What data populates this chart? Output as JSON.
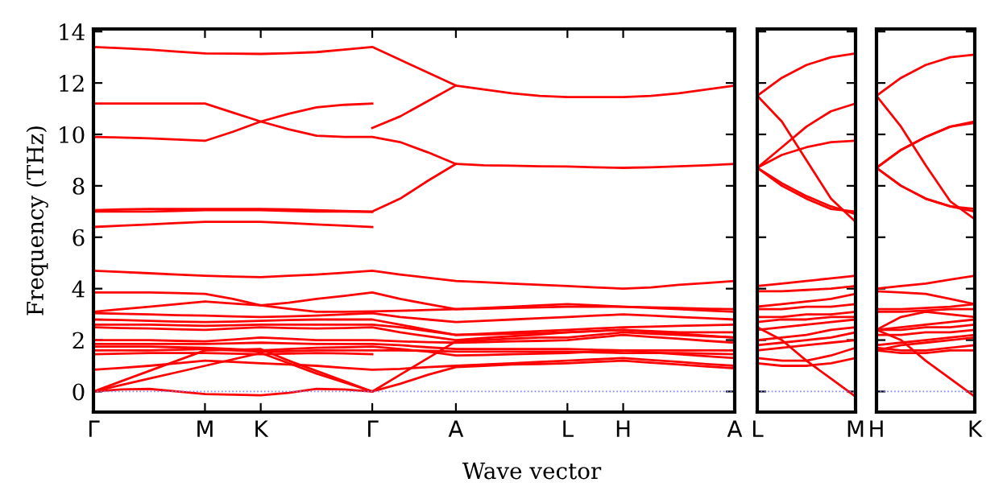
{
  "chart_data": [
    {
      "type": "line",
      "xlabel": "Wave vector",
      "ylabel": "Frequency (THz)",
      "ylim": [
        -0.8,
        14.1
      ],
      "categories": [
        "Γ",
        null,
        null,
        null,
        "M",
        null,
        "K",
        null,
        null,
        null,
        "Γ",
        null,
        null,
        "A",
        null,
        null,
        null,
        "L",
        null,
        "H",
        null,
        null,
        null,
        "A"
      ],
      "yticks": [
        0,
        2,
        4,
        6,
        8,
        10,
        12,
        14
      ],
      "grid": false,
      "legend": false,
      "line_style": "solid",
      "ref_lines": [
        {
          "axis": "y",
          "value": 0,
          "label": null,
          "color": "#8080ff",
          "line_style": "dotted"
        }
      ],
      "series": [
        {
          "color": "#ff0000",
          "values": [
            13.4,
            13.35,
            13.3,
            13.22,
            13.15,
            13.14,
            13.13,
            13.16,
            13.2,
            13.3,
            13.4,
            12.9,
            12.4,
            11.9,
            11.75,
            11.6,
            11.5,
            11.45,
            11.45,
            11.45,
            11.5,
            11.6,
            11.75,
            11.9
          ]
        },
        {
          "color": "#ff0000",
          "values": [
            11.2,
            11.2,
            11.2,
            11.2,
            11.2,
            10.85,
            10.5,
            10.2,
            9.95,
            9.9,
            9.9,
            9.7,
            9.3,
            8.85,
            8.8,
            8.78,
            8.76,
            8.75,
            8.72,
            8.7,
            8.72,
            8.76,
            8.8,
            8.85
          ]
        },
        {
          "color": "#ff0000",
          "values": [
            9.9,
            9.88,
            9.85,
            9.8,
            9.75,
            10.1,
            10.5,
            10.8,
            11.05,
            11.15,
            11.2,
            null,
            null,
            null,
            null,
            null,
            null,
            null,
            null,
            null,
            null,
            null,
            null,
            null
          ]
        },
        {
          "color": "#ff0000",
          "values": [
            null,
            null,
            null,
            null,
            null,
            null,
            null,
            null,
            null,
            null,
            10.25,
            10.7,
            11.3,
            11.9,
            null,
            null,
            null,
            null,
            null,
            null,
            null,
            null,
            null,
            null
          ]
        },
        {
          "color": "#ff0000",
          "values": [
            7.05,
            7.08,
            7.1,
            7.1,
            7.1,
            7.1,
            7.1,
            7.08,
            7.05,
            7.02,
            7.0,
            7.5,
            8.2,
            8.85,
            null,
            null,
            null,
            null,
            null,
            null,
            null,
            null,
            null,
            null
          ]
        },
        {
          "color": "#ff0000",
          "values": [
            7.0,
            7.0,
            7.0,
            7.02,
            7.05,
            7.05,
            7.05,
            7.02,
            7.0,
            7.0,
            6.98,
            null,
            null,
            null,
            null,
            null,
            null,
            null,
            null,
            null,
            null,
            null,
            null,
            null
          ]
        },
        {
          "color": "#ff0000",
          "values": [
            6.4,
            6.45,
            6.5,
            6.55,
            6.6,
            6.6,
            6.6,
            6.55,
            6.5,
            6.45,
            6.4,
            null,
            null,
            null,
            null,
            null,
            null,
            null,
            null,
            null,
            null,
            null,
            null,
            null
          ]
        },
        {
          "color": "#ff0000",
          "values": [
            4.7,
            4.65,
            4.6,
            4.55,
            4.5,
            4.47,
            4.45,
            4.5,
            4.55,
            4.62,
            4.7,
            4.55,
            4.42,
            4.3,
            4.25,
            4.2,
            4.15,
            4.1,
            4.05,
            4.0,
            4.05,
            4.15,
            4.22,
            4.3
          ]
        },
        {
          "color": "#ff0000",
          "values": [
            3.85,
            3.85,
            3.85,
            3.83,
            3.8,
            3.6,
            3.35,
            3.45,
            3.6,
            3.72,
            3.85,
            3.6,
            3.4,
            3.2,
            3.25,
            3.3,
            3.35,
            3.4,
            3.35,
            3.3,
            3.27,
            3.25,
            3.22,
            3.2
          ]
        },
        {
          "color": "#ff0000",
          "values": [
            3.1,
            3.2,
            3.3,
            3.4,
            3.5,
            3.42,
            3.35,
            3.22,
            3.1,
            3.1,
            3.12,
            3.14,
            3.17,
            3.2,
            3.22,
            3.25,
            3.27,
            3.3,
            3.3,
            3.3,
            3.25,
            3.2,
            3.15,
            3.1
          ]
        },
        {
          "color": "#ff0000",
          "values": [
            3.05,
            3.02,
            3.0,
            2.97,
            2.95,
            2.92,
            2.9,
            2.92,
            2.95,
            3.0,
            3.05,
            2.9,
            2.8,
            2.7,
            2.75,
            2.8,
            2.85,
            2.9,
            2.95,
            3.0,
            2.95,
            2.9,
            2.85,
            2.8
          ]
        },
        {
          "color": "#ff0000",
          "values": [
            2.8,
            2.78,
            2.75,
            2.72,
            2.7,
            2.72,
            2.75,
            2.78,
            2.8,
            2.8,
            2.8,
            2.6,
            2.4,
            2.2,
            2.22,
            2.25,
            2.27,
            2.3,
            2.35,
            2.4,
            2.35,
            2.3,
            2.3,
            2.3
          ]
        },
        {
          "color": "#ff0000",
          "values": [
            2.6,
            2.6,
            2.6,
            2.58,
            2.55,
            2.58,
            2.6,
            2.6,
            2.6,
            2.6,
            2.6,
            2.5,
            2.35,
            2.2,
            2.25,
            2.3,
            2.35,
            2.4,
            2.45,
            2.5,
            2.52,
            2.55,
            2.58,
            2.6
          ]
        },
        {
          "color": "#ff0000",
          "values": [
            2.5,
            2.47,
            2.45,
            2.42,
            2.4,
            2.45,
            2.5,
            2.47,
            2.45,
            2.47,
            2.5,
            2.3,
            2.15,
            2.0,
            2.08,
            2.15,
            2.22,
            2.3,
            2.35,
            2.4,
            2.32,
            2.25,
            2.17,
            2.1
          ]
        },
        {
          "color": "#ff0000",
          "values": [
            2.0,
            2.0,
            2.0,
            1.97,
            1.95,
            2.02,
            2.1,
            2.05,
            2.0,
            2.0,
            2.0,
            1.95,
            1.92,
            1.9,
            1.92,
            1.95,
            1.97,
            2.0,
            2.1,
            2.2,
            2.12,
            2.05,
            1.97,
            1.9
          ]
        },
        {
          "color": "#ff0000",
          "values": [
            1.85,
            1.85,
            1.85,
            1.85,
            1.85,
            1.87,
            1.9,
            1.87,
            1.85,
            1.85,
            1.85,
            1.8,
            1.72,
            1.65,
            1.65,
            1.65,
            1.65,
            1.65,
            1.62,
            1.6,
            1.6,
            1.6,
            1.6,
            1.6
          ]
        },
        {
          "color": "#ff0000",
          "values": [
            1.75,
            1.75,
            1.75,
            1.72,
            1.7,
            1.65,
            1.6,
            1.65,
            1.7,
            1.72,
            1.75,
            1.65,
            1.55,
            1.4,
            1.42,
            1.45,
            1.47,
            1.5,
            1.55,
            1.6,
            1.52,
            1.45,
            1.37,
            1.3
          ]
        },
        {
          "color": "#ff0000",
          "values": [
            1.6,
            1.6,
            1.6,
            1.62,
            1.65,
            1.6,
            1.55,
            1.57,
            1.6,
            1.6,
            1.6,
            1.6,
            1.58,
            1.55,
            1.55,
            1.55,
            1.55,
            1.55,
            1.52,
            1.5,
            1.5,
            1.5,
            1.47,
            1.45
          ]
        },
        {
          "color": "#ff0000",
          "values": [
            1.45,
            1.47,
            1.5,
            1.5,
            1.5,
            1.47,
            1.45,
            1.47,
            1.5,
            1.48,
            1.45,
            null,
            null,
            null,
            null,
            null,
            null,
            null,
            null,
            null,
            null,
            null,
            null,
            null
          ]
        },
        {
          "color": "#ff0000",
          "values": [
            0.85,
            0.92,
            1.0,
            1.1,
            1.2,
            1.15,
            1.1,
            1.05,
            1.0,
            0.92,
            0.85,
            0.88,
            0.95,
            1.0,
            1.05,
            1.1,
            1.15,
            1.2,
            1.25,
            1.3,
            1.22,
            1.15,
            1.07,
            1.0
          ]
        },
        {
          "color": "#ff0000",
          "values": [
            0,
            0.4,
            0.8,
            1.2,
            1.6,
            1.62,
            1.65,
            1.2,
            0.8,
            0.4,
            0,
            0.65,
            1.3,
            1.95,
            2.0,
            2.05,
            2.1,
            2.1,
            2.2,
            2.3,
            2.25,
            2.2,
            2.15,
            2.1
          ]
        },
        {
          "color": "#ff0000",
          "values": [
            0,
            0.25,
            0.5,
            0.75,
            1.0,
            1.25,
            1.5,
            1.1,
            0.7,
            0.35,
            0,
            0.3,
            0.65,
            0.95,
            1.0,
            1.05,
            1.07,
            1.1,
            1.15,
            1.2,
            1.12,
            1.05,
            0.97,
            0.9
          ]
        },
        {
          "color": "#ff0000",
          "values": [
            0,
            0.08,
            0.1,
            0,
            -0.1,
            -0.12,
            -0.15,
            -0.05,
            0.1,
            0.08,
            0,
            null,
            null,
            null,
            null,
            null,
            null,
            null,
            null,
            null,
            null,
            null,
            null,
            null
          ]
        }
      ]
    },
    {
      "type": "line",
      "ylim": [
        -0.8,
        14.1
      ],
      "tick_labels": "x",
      "categories": [
        "L",
        null,
        null,
        null,
        "M"
      ],
      "yticks": [
        {
          "value": 0,
          "label": null
        },
        {
          "value": 2,
          "label": null
        },
        {
          "value": 4,
          "label": null
        },
        {
          "value": 6,
          "label": null
        },
        {
          "value": 8,
          "label": null
        },
        {
          "value": 10,
          "label": null
        },
        {
          "value": 12,
          "label": null
        },
        {
          "value": 14,
          "label": null
        }
      ],
      "grid": false,
      "legend": false,
      "line_style": "solid",
      "ref_lines": [
        {
          "axis": "y",
          "value": 0,
          "label": null,
          "color": "#8080ff",
          "line_style": "dotted"
        }
      ],
      "series": [
        {
          "color": "#ff0000",
          "values": [
            11.5,
            12.2,
            12.7,
            13.0,
            13.15
          ]
        },
        {
          "color": "#ff0000",
          "values": [
            11.5,
            10.5,
            9.0,
            7.5,
            6.6
          ]
        },
        {
          "color": "#ff0000",
          "values": [
            8.7,
            9.5,
            10.3,
            10.9,
            11.2
          ]
        },
        {
          "color": "#ff0000",
          "values": [
            8.7,
            9.2,
            9.5,
            9.7,
            9.75
          ]
        },
        {
          "color": "#ff0000",
          "values": [
            8.7,
            8.0,
            7.5,
            7.1,
            7.0
          ]
        },
        {
          "color": "#ff0000",
          "values": [
            8.7,
            8.1,
            7.6,
            7.2,
            6.9
          ]
        },
        {
          "color": "#ff0000",
          "values": [
            4.1,
            4.2,
            4.3,
            4.4,
            4.5
          ]
        },
        {
          "color": "#ff0000",
          "values": [
            3.9,
            3.9,
            3.95,
            4.0,
            4.1
          ]
        },
        {
          "color": "#ff0000",
          "values": [
            3.3,
            3.4,
            3.5,
            3.6,
            3.8
          ]
        },
        {
          "color": "#ff0000",
          "values": [
            3.2,
            3.2,
            3.3,
            3.3,
            3.4
          ]
        },
        {
          "color": "#ff0000",
          "values": [
            2.9,
            2.9,
            3.0,
            3.0,
            3.1
          ]
        },
        {
          "color": "#ff0000",
          "values": [
            2.7,
            2.8,
            2.8,
            2.9,
            2.9
          ]
        },
        {
          "color": "#ff0000",
          "values": [
            2.4,
            2.5,
            2.6,
            2.7,
            2.8
          ]
        },
        {
          "color": "#ff0000",
          "values": [
            2.5,
            2.0,
            1.2,
            0.5,
            -0.2
          ]
        },
        {
          "color": "#ff0000",
          "values": [
            2.0,
            2.1,
            2.2,
            2.4,
            2.5
          ]
        },
        {
          "color": "#ff0000",
          "values": [
            1.8,
            1.9,
            2.0,
            2.1,
            2.3
          ]
        },
        {
          "color": "#ff0000",
          "values": [
            1.6,
            1.7,
            1.8,
            1.9,
            2.0
          ]
        },
        {
          "color": "#ff0000",
          "values": [
            1.3,
            1.2,
            1.2,
            1.4,
            1.7
          ]
        },
        {
          "color": "#ff0000",
          "values": [
            1.1,
            1.0,
            1.0,
            1.1,
            1.3
          ]
        }
      ]
    },
    {
      "type": "line",
      "ylim": [
        -0.8,
        14.1
      ],
      "tick_labels": "x",
      "categories": [
        "H",
        null,
        null,
        null,
        "K"
      ],
      "yticks": [
        {
          "value": 0,
          "label": null
        },
        {
          "value": 2,
          "label": null
        },
        {
          "value": 4,
          "label": null
        },
        {
          "value": 6,
          "label": null
        },
        {
          "value": 8,
          "label": null
        },
        {
          "value": 10,
          "label": null
        },
        {
          "value": 12,
          "label": null
        },
        {
          "value": 14,
          "label": null
        }
      ],
      "grid": false,
      "legend": false,
      "line_style": "solid",
      "ref_lines": [
        {
          "axis": "y",
          "value": 0,
          "label": null,
          "color": "#8080ff",
          "line_style": "dotted"
        }
      ],
      "series": [
        {
          "color": "#ff0000",
          "values": [
            11.5,
            12.2,
            12.7,
            13.0,
            13.1
          ]
        },
        {
          "color": "#ff0000",
          "values": [
            11.5,
            10.3,
            8.8,
            7.4,
            6.7
          ]
        },
        {
          "color": "#ff0000",
          "values": [
            8.7,
            9.4,
            9.9,
            10.3,
            10.5
          ]
        },
        {
          "color": "#ff0000",
          "values": [
            8.7,
            9.4,
            9.9,
            10.3,
            10.45
          ]
        },
        {
          "color": "#ff0000",
          "values": [
            8.7,
            8.0,
            7.5,
            7.2,
            7.1
          ]
        },
        {
          "color": "#ff0000",
          "values": [
            8.7,
            8.0,
            7.5,
            7.2,
            7.0
          ]
        },
        {
          "color": "#ff0000",
          "values": [
            4.0,
            4.1,
            4.2,
            4.35,
            4.5
          ]
        },
        {
          "color": "#ff0000",
          "values": [
            3.9,
            3.85,
            3.8,
            3.6,
            3.4
          ]
        },
        {
          "color": "#ff0000",
          "values": [
            3.2,
            3.2,
            3.25,
            3.3,
            3.4
          ]
        },
        {
          "color": "#ff0000",
          "values": [
            3.1,
            3.1,
            3.15,
            3.2,
            3.2
          ]
        },
        {
          "color": "#ff0000",
          "values": [
            2.4,
            2.9,
            3.1,
            3.0,
            2.9
          ]
        },
        {
          "color": "#ff0000",
          "values": [
            2.4,
            2.5,
            2.6,
            2.7,
            2.8
          ]
        },
        {
          "color": "#ff0000",
          "values": [
            2.4,
            2.4,
            2.5,
            2.5,
            2.6
          ]
        },
        {
          "color": "#ff0000",
          "values": [
            2.4,
            2.0,
            1.2,
            0.5,
            -0.2
          ]
        },
        {
          "color": "#ff0000",
          "values": [
            2.2,
            2.2,
            2.3,
            2.3,
            2.4
          ]
        },
        {
          "color": "#ff0000",
          "values": [
            1.8,
            1.9,
            2.0,
            2.1,
            2.2
          ]
        },
        {
          "color": "#ff0000",
          "values": [
            1.6,
            1.8,
            1.9,
            2.0,
            2.1
          ]
        },
        {
          "color": "#ff0000",
          "values": [
            1.7,
            1.6,
            1.6,
            1.7,
            1.8
          ]
        },
        {
          "color": "#ff0000",
          "values": [
            1.6,
            1.5,
            1.5,
            1.6,
            1.6
          ]
        }
      ]
    }
  ]
}
